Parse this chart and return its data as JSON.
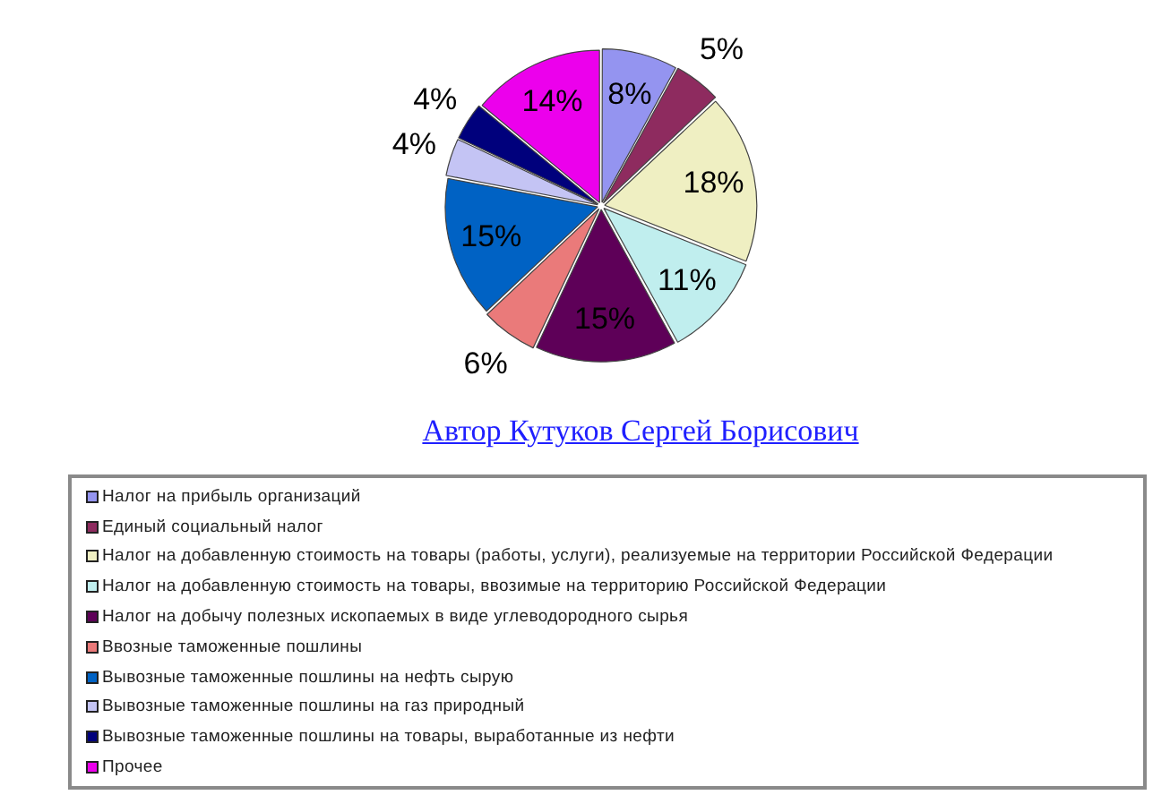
{
  "chart_data": {
    "type": "pie",
    "categories": [
      "Налог на прибыль организаций",
      "Единый социальный налог",
      "Налог на добавленную стоимость на товары (работы, услуги), реализуемые на территории Российской Федерации",
      "Налог на добавленную стоимость на товары, ввозимые на территорию Российской Федерации",
      "Налог на добычу полезных ископаемых в виде углеводородного сырья",
      "Ввозные таможенные пошлины",
      "Вывозные таможенные пошлины на нефть сырую",
      "Вывозные таможенные пошлины на газ природный",
      "Вывозные таможенные пошлины на товары, выработанные из нефти",
      "Прочее"
    ],
    "values": [
      8,
      5,
      18,
      11,
      15,
      6,
      15,
      4,
      4,
      14
    ],
    "value_labels": [
      "8%",
      "5%",
      "18%",
      "11%",
      "15%",
      "6%",
      "15%",
      "4%",
      "4%",
      "14%"
    ],
    "colors": [
      "#9494f0",
      "#8e2b5f",
      "#efefc2",
      "#c0eeee",
      "#5e0058",
      "#ea7a7a",
      "#0062c4",
      "#c4c4f4",
      "#00007c",
      "#ec00ec"
    ],
    "annotations": [
      "Автор Кутуков Сергей Борисович"
    ],
    "legend": "bottom"
  }
}
